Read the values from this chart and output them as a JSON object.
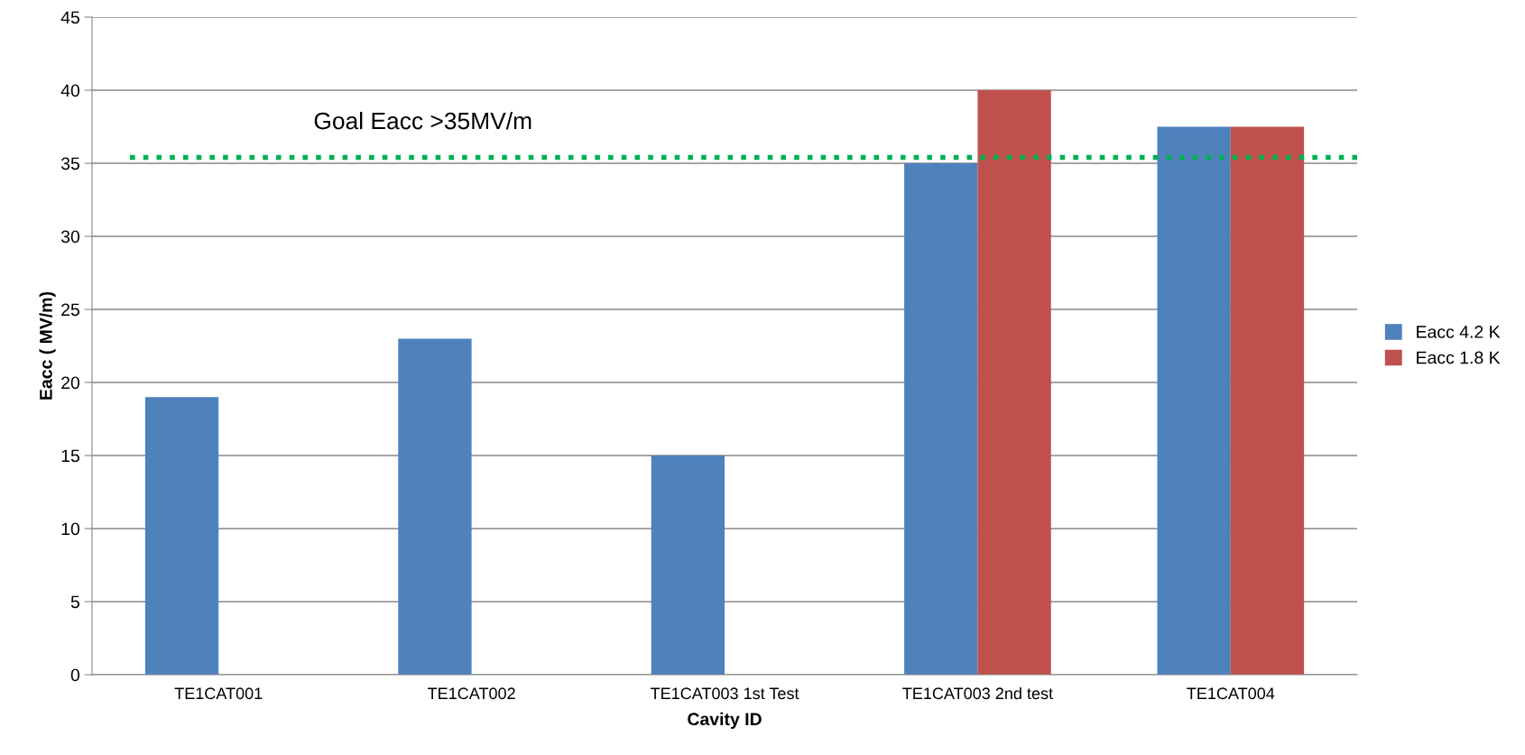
{
  "chart_data": {
    "type": "bar",
    "xlabel": "Cavity ID",
    "ylabel": "Eacc ( MV/m)",
    "categories": [
      "TE1CAT001",
      "TE1CAT002",
      "TE1CAT003 1st Test",
      "TE1CAT003 2nd test",
      "TE1CAT004"
    ],
    "series": [
      {
        "name": "Eacc 4.2 K",
        "color": "#4f81bd",
        "values": [
          19,
          23,
          15,
          35,
          37.5
        ]
      },
      {
        "name": "Eacc 1.8 K",
        "color": "#c0504d",
        "values": [
          null,
          null,
          null,
          40,
          37.5
        ]
      }
    ],
    "ylim": [
      0,
      45
    ],
    "yticks": [
      0,
      5,
      10,
      15,
      20,
      25,
      30,
      35,
      40,
      45
    ],
    "grid": "y",
    "legend": "right",
    "ref_lines": [
      {
        "axis": "y",
        "value": 35.4,
        "label": "Goal Eacc >35MV/m",
        "color": "#00b050",
        "line_style": "dotted"
      }
    ]
  }
}
